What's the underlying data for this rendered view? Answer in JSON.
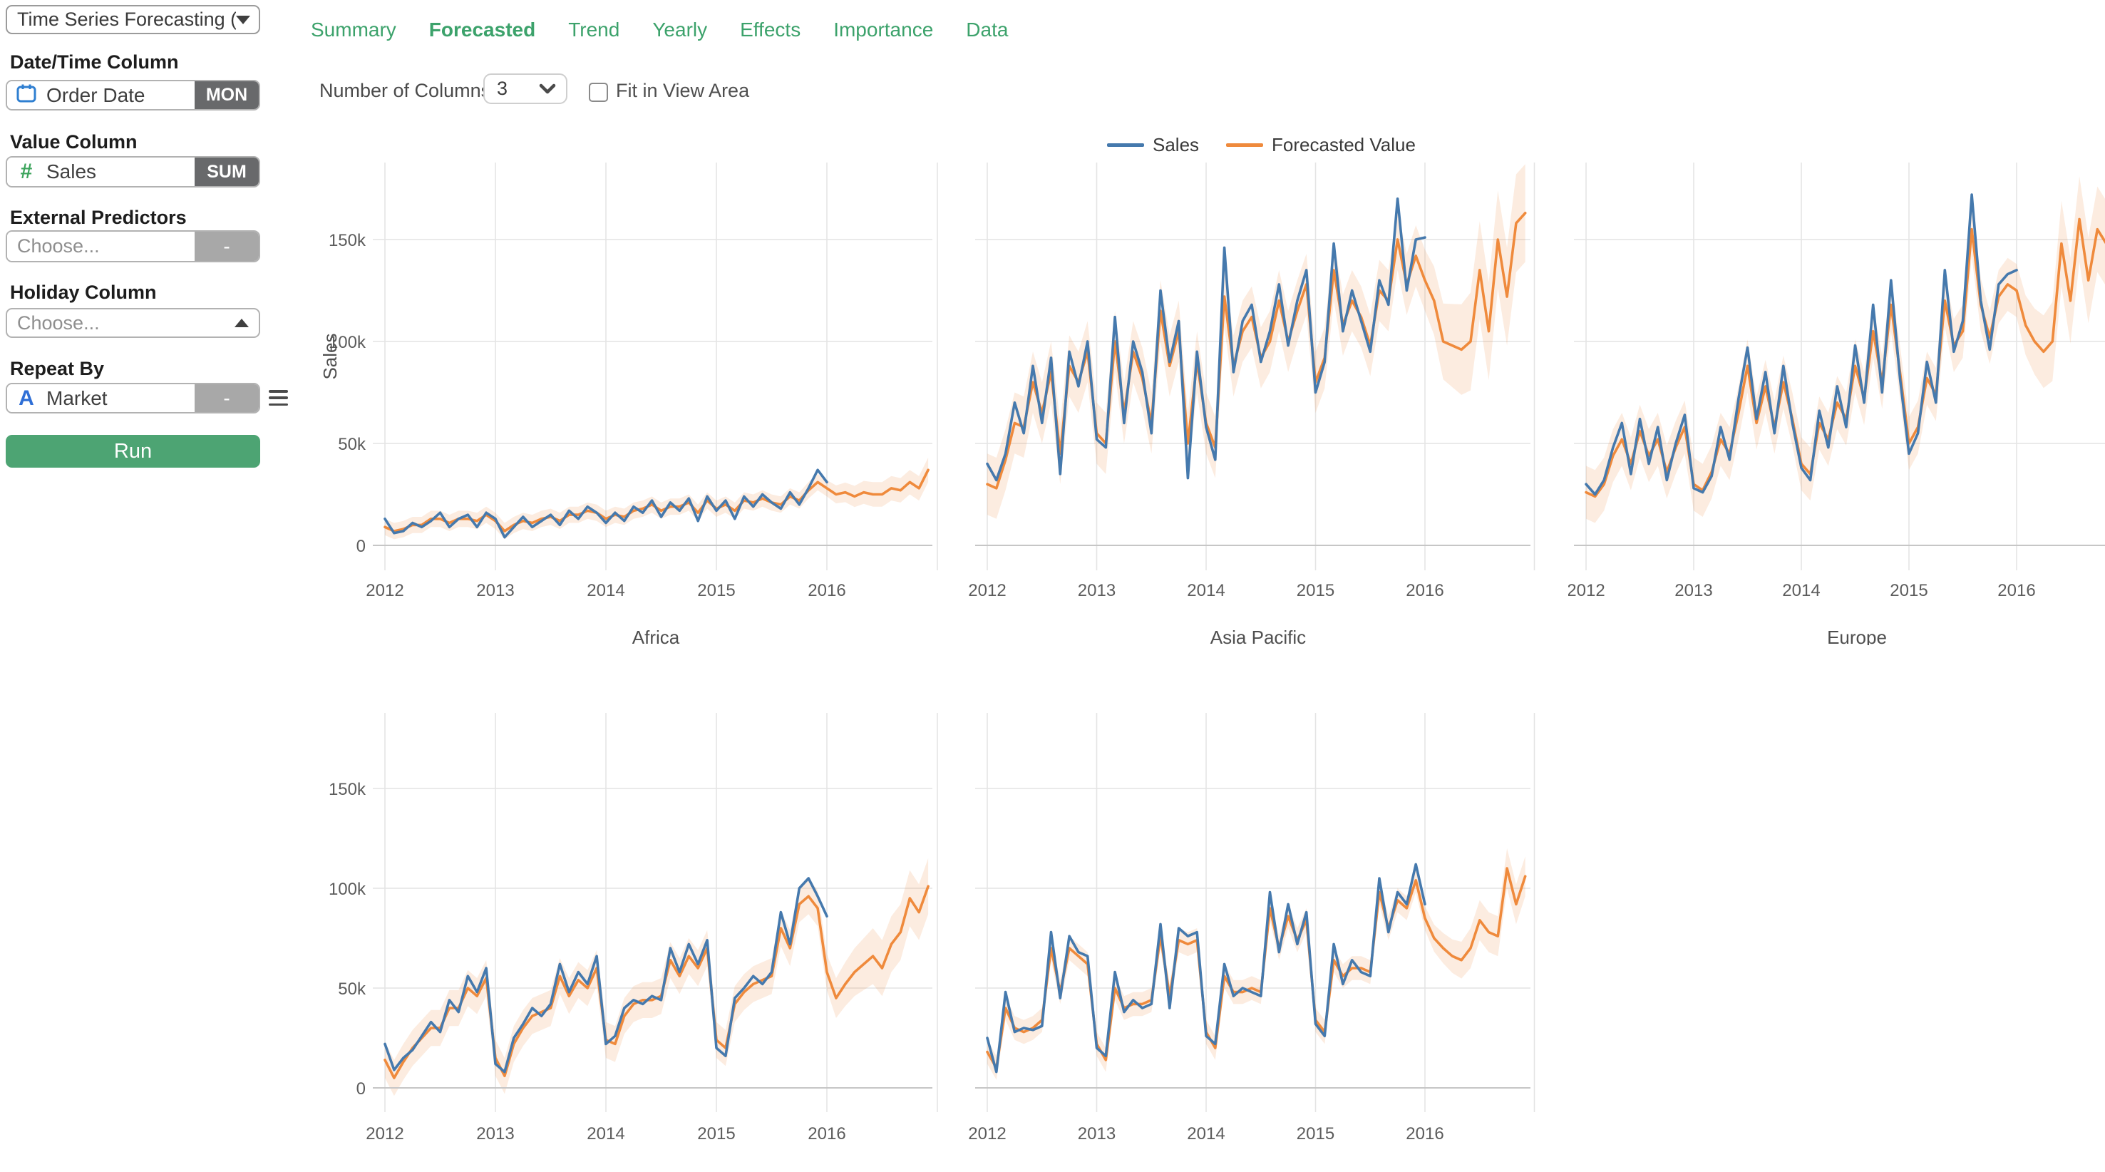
{
  "sidebar": {
    "picker_value": "Time Series Forecasting (P...",
    "date_label": "Date/Time Column",
    "date_value": "Order Date",
    "date_agg": "MON",
    "value_label": "Value Column",
    "value_value": "Sales",
    "value_agg": "SUM",
    "external_label": "External Predictors",
    "external_placeholder": "Choose...",
    "external_minus": "-",
    "holiday_label": "Holiday Column",
    "holiday_placeholder": "Choose...",
    "repeat_label": "Repeat By",
    "repeat_value": "Market",
    "repeat_minus": "-",
    "run_label": "Run"
  },
  "icons": {
    "hash": "#",
    "letter_a": "A",
    "calendar": "calendar-icon",
    "hamburger": "menu-icon",
    "chevron_down": "chevron-down-icon",
    "chevron_up": "chevron-up-icon"
  },
  "tabs": [
    {
      "label": "Summary",
      "active": false
    },
    {
      "label": "Forecasted",
      "active": true
    },
    {
      "label": "Trend",
      "active": false
    },
    {
      "label": "Yearly",
      "active": false
    },
    {
      "label": "Effects",
      "active": false
    },
    {
      "label": "Importance",
      "active": false
    },
    {
      "label": "Data",
      "active": false
    }
  ],
  "toolbar": {
    "columns_label": "Number of Columns:",
    "columns_value": "3",
    "fit_label": "Fit in View Area",
    "fit_checked": false
  },
  "legend": [
    {
      "label": "Sales",
      "color": "#4579ad"
    },
    {
      "label": "Forecasted Value",
      "color": "#ef8a3c"
    }
  ],
  "chart_data": {
    "type": "line",
    "x_start": "2012-01",
    "x_freq": "monthly",
    "x_tick_labels": [
      "2012",
      "2013",
      "2014",
      "2015",
      "2016"
    ],
    "y_tick_labels": [
      "0",
      "50k",
      "100k",
      "150k"
    ],
    "y_tick_values_thousands": [
      0,
      50,
      100,
      150
    ],
    "y_axis_label": "Sales",
    "values_unit": "thousands",
    "colors": {
      "sales": "#4579ad",
      "forecast": "#ef8a3c",
      "band": "rgba(239,138,60,0.16)"
    },
    "legend_position": "top-center",
    "grid": true,
    "panels": [
      {
        "title": "Africa",
        "sales": [
          13,
          6,
          7,
          11,
          9,
          12,
          16,
          9,
          13,
          15,
          9,
          16,
          13,
          4,
          9,
          14,
          9,
          12,
          15,
          10,
          17,
          13,
          19,
          16,
          11,
          16,
          12,
          19,
          16,
          22,
          14,
          21,
          17,
          23,
          12,
          24,
          17,
          22,
          13,
          24,
          19,
          25,
          21,
          18,
          26,
          20,
          28,
          37,
          31
        ],
        "forecast": [
          9,
          7,
          8,
          10,
          10,
          13,
          13,
          11,
          13,
          13,
          12,
          15,
          12,
          7,
          10,
          12,
          11,
          13,
          14,
          12,
          15,
          15,
          17,
          16,
          13,
          15,
          14,
          17,
          18,
          20,
          17,
          19,
          19,
          21,
          16,
          22,
          18,
          20,
          17,
          22,
          21,
          23,
          21,
          20,
          24,
          22,
          27,
          31,
          28,
          25,
          26,
          24,
          26,
          25,
          25,
          28,
          27,
          31,
          28,
          37
        ],
        "band_halfwidth_fit": 4,
        "band_halfwidth_forecast": 6
      },
      {
        "title": "Asia Pacific",
        "sales": [
          40,
          32,
          45,
          70,
          55,
          88,
          60,
          92,
          35,
          95,
          78,
          100,
          52,
          48,
          112,
          60,
          100,
          85,
          55,
          125,
          90,
          110,
          33,
          95,
          58,
          42,
          146,
          85,
          110,
          118,
          90,
          105,
          128,
          98,
          120,
          135,
          75,
          90,
          148,
          105,
          125,
          110,
          95,
          130,
          118,
          170,
          125,
          150,
          151
        ],
        "forecast": [
          30,
          28,
          42,
          60,
          58,
          80,
          65,
          85,
          45,
          88,
          80,
          95,
          55,
          50,
          100,
          65,
          95,
          82,
          60,
          115,
          88,
          105,
          50,
          90,
          60,
          48,
          122,
          88,
          105,
          112,
          92,
          100,
          120,
          100,
          115,
          128,
          80,
          92,
          135,
          108,
          120,
          112,
          98,
          125,
          120,
          150,
          128,
          142,
          130,
          120,
          100,
          98,
          96,
          100,
          135,
          105,
          150,
          122,
          158,
          163
        ],
        "band_halfwidth_fit": 15,
        "band_halfwidth_forecast": 24
      },
      {
        "title": "Europe",
        "sales": [
          30,
          25,
          32,
          48,
          60,
          35,
          62,
          40,
          58,
          32,
          50,
          64,
          28,
          26,
          34,
          58,
          42,
          72,
          97,
          62,
          85,
          55,
          88,
          60,
          38,
          32,
          66,
          48,
          78,
          58,
          98,
          70,
          118,
          75,
          130,
          82,
          45,
          55,
          90,
          70,
          135,
          95,
          110,
          172,
          120,
          96,
          128,
          133,
          135
        ],
        "forecast": [
          26,
          24,
          30,
          44,
          52,
          40,
          56,
          44,
          52,
          36,
          48,
          58,
          30,
          27,
          36,
          52,
          45,
          65,
          88,
          60,
          78,
          58,
          80,
          62,
          40,
          35,
          60,
          52,
          70,
          62,
          88,
          72,
          105,
          80,
          118,
          85,
          50,
          58,
          82,
          74,
          120,
          98,
          105,
          155,
          118,
          102,
          122,
          128,
          125,
          108,
          100,
          95,
          100,
          148,
          120,
          160,
          130,
          155,
          148,
          140
        ],
        "band_halfwidth_fit": 13,
        "band_halfwidth_forecast": 21
      },
      {
        "title": "",
        "sales": [
          22,
          9,
          15,
          19,
          26,
          33,
          28,
          44,
          38,
          56,
          48,
          60,
          12,
          8,
          25,
          32,
          40,
          36,
          42,
          62,
          48,
          58,
          52,
          66,
          22,
          26,
          40,
          44,
          42,
          46,
          44,
          70,
          58,
          72,
          62,
          74,
          20,
          16,
          45,
          50,
          56,
          52,
          58,
          88,
          72,
          100,
          105,
          96,
          86
        ],
        "forecast": [
          14,
          5,
          13,
          20,
          25,
          30,
          30,
          40,
          40,
          50,
          46,
          55,
          15,
          6,
          22,
          30,
          36,
          38,
          40,
          56,
          46,
          54,
          50,
          60,
          24,
          22,
          36,
          42,
          44,
          44,
          46,
          64,
          56,
          66,
          60,
          70,
          24,
          20,
          42,
          48,
          52,
          54,
          56,
          80,
          70,
          92,
          96,
          90,
          58,
          45,
          52,
          58,
          62,
          66,
          60,
          72,
          78,
          95,
          88,
          101
        ],
        "band_halfwidth_fit": 9,
        "band_halfwidth_forecast": 14
      },
      {
        "title": "",
        "sales": [
          25,
          8,
          48,
          28,
          30,
          29,
          31,
          78,
          45,
          76,
          68,
          66,
          20,
          16,
          58,
          38,
          44,
          40,
          42,
          82,
          40,
          80,
          76,
          78,
          26,
          22,
          62,
          46,
          50,
          48,
          46,
          98,
          68,
          92,
          72,
          88,
          32,
          26,
          72,
          52,
          64,
          58,
          56,
          105,
          78,
          98,
          92,
          112,
          92
        ],
        "forecast": [
          18,
          10,
          40,
          30,
          28,
          30,
          34,
          70,
          48,
          70,
          66,
          62,
          22,
          14,
          50,
          40,
          42,
          42,
          44,
          76,
          46,
          74,
          72,
          74,
          28,
          20,
          56,
          48,
          48,
          50,
          48,
          90,
          70,
          86,
          74,
          84,
          34,
          28,
          64,
          56,
          60,
          60,
          58,
          98,
          80,
          94,
          90,
          104,
          85,
          75,
          70,
          66,
          64,
          70,
          84,
          78,
          76,
          110,
          92,
          106
        ],
        "band_halfwidth_fit": 6,
        "band_halfwidth_forecast": 10
      }
    ]
  }
}
